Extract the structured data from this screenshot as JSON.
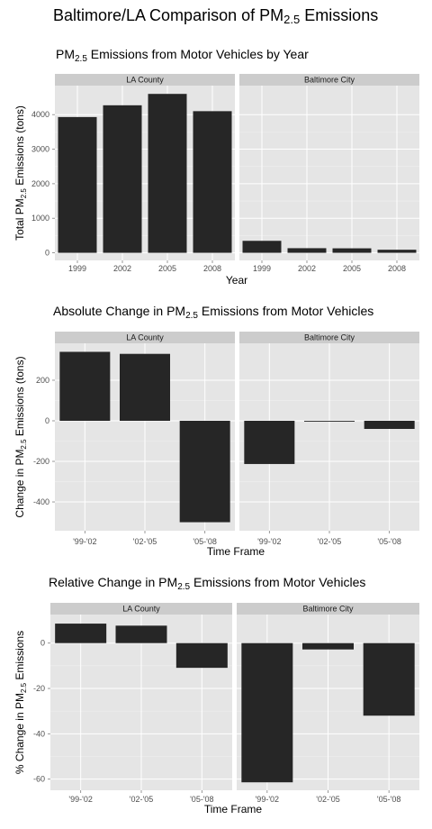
{
  "main_title": {
    "base": "Baltimore/LA Comparison of PM",
    "sub": "2.5",
    "rest": " Emissions"
  },
  "colors": {
    "panel": "#e5e5e5",
    "strip": "#cccccc",
    "grid_major": "#ffffff",
    "grid_minor": "#f0f0f0",
    "bar": "#262626"
  },
  "chart_data": [
    {
      "type": "bar",
      "title": {
        "base": "PM",
        "sub": "2.5",
        "rest": " Emissions from Motor Vehicles by Year"
      },
      "facets": [
        "LA County",
        "Baltimore City"
      ],
      "categories": [
        "1999",
        "2002",
        "2005",
        "2008"
      ],
      "series": [
        {
          "facet": "LA County",
          "values": [
            3930,
            4270,
            4600,
            4100
          ]
        },
        {
          "facet": "Baltimore City",
          "values": [
            347,
            134,
            130,
            89
          ]
        }
      ],
      "xlabel": "Year",
      "ylabel": {
        "base": "Total PM",
        "sub": "2.5",
        "rest": " Emissions (tons)"
      },
      "yticks": [
        "0",
        "1000",
        "2000",
        "3000",
        "4000"
      ],
      "ylim": [
        -220,
        4840
      ]
    },
    {
      "type": "bar",
      "title": {
        "base": "Absolute Change in PM",
        "sub": "2.5",
        "rest": " Emissions from Motor Vehicles"
      },
      "facets": [
        "LA County",
        "Baltimore City"
      ],
      "categories": [
        "'99-'02",
        "'02-'05",
        "'05-'08"
      ],
      "series": [
        {
          "facet": "LA County",
          "values": [
            340,
            330,
            -500
          ]
        },
        {
          "facet": "Baltimore City",
          "values": [
            -213,
            -4,
            -40
          ]
        }
      ],
      "xlabel": "Time Frame",
      "ylabel": {
        "base": "Change in PM",
        "sub": "2.5",
        "rest": " Emissions (tons)"
      },
      "yticks": [
        "-400",
        "-200",
        "0",
        "200"
      ],
      "ylim": [
        -542,
        382
      ]
    },
    {
      "type": "bar",
      "title": {
        "base": "Relative Change in PM",
        "sub": "2.5",
        "rest": " Emissions from Motor Vehicles"
      },
      "facets": [
        "LA County",
        "Baltimore City"
      ],
      "categories": [
        "'99-'02",
        "'02-'05",
        "'05-'08"
      ],
      "series": [
        {
          "facet": "LA County",
          "values": [
            8.6,
            7.7,
            -10.9
          ]
        },
        {
          "facet": "Baltimore City",
          "values": [
            -61.4,
            -2.8,
            -32.0
          ]
        }
      ],
      "xlabel": "Time Frame",
      "ylabel": {
        "base": "% Change in PM",
        "sub": "2.5",
        "rest": " Emissions"
      },
      "yticks": [
        "-60",
        "-40",
        "-20",
        "0"
      ],
      "ylim": [
        -64.9,
        12.6
      ]
    }
  ]
}
